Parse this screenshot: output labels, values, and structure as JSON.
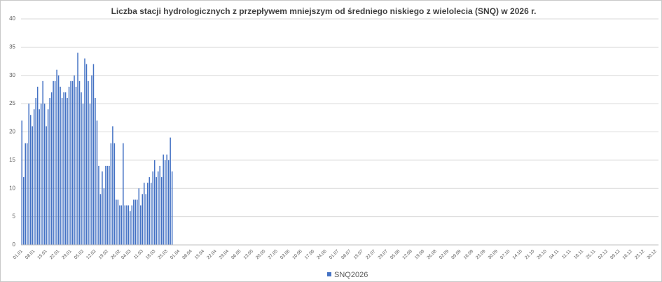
{
  "chart_data": {
    "type": "bar",
    "title": "Liczba stacji hydrologicznych z przepływem mniejszym od średniego niskiego z wielolecia (SNQ) w 2026 r.",
    "categories": [
      "01.01",
      null,
      null,
      null,
      null,
      null,
      null,
      "08.01",
      null,
      null,
      null,
      null,
      null,
      null,
      "15.01",
      null,
      null,
      null,
      null,
      null,
      null,
      "22.01",
      null,
      null,
      null,
      null,
      null,
      null,
      "29.01",
      null,
      null,
      null,
      null,
      null,
      null,
      "05.02",
      null,
      null,
      null,
      null,
      null,
      null,
      "12.02",
      null,
      null,
      null,
      null,
      null,
      null,
      "19.02",
      null,
      null,
      null,
      null,
      null,
      null,
      "26.02",
      null,
      null,
      null,
      null,
      null,
      "04.03",
      null,
      null,
      null,
      null,
      null,
      null,
      "11.03",
      null,
      null,
      null,
      null,
      null,
      null,
      "18.03",
      null,
      null,
      null,
      null,
      null,
      null,
      "25.03",
      null,
      null,
      null,
      null,
      null,
      null,
      "01.04",
      null,
      null,
      null,
      null,
      null,
      null,
      "08.04",
      null,
      null,
      null,
      null,
      null,
      null,
      "15.04",
      null,
      null,
      null,
      null,
      null,
      null,
      "22.04",
      null,
      null,
      null,
      null,
      null,
      null,
      "29.04",
      null,
      null,
      null,
      null,
      null,
      null,
      "06.05",
      null,
      null,
      null,
      null,
      null,
      null,
      "13.05",
      null,
      null,
      null,
      null,
      null,
      null,
      "20.05",
      null,
      null,
      null,
      null,
      null,
      null,
      "27.05",
      null,
      null,
      null,
      null,
      null,
      null,
      "03.06",
      null,
      null,
      null,
      null,
      null,
      null,
      "10.06",
      null,
      null,
      null,
      null,
      null,
      null,
      "17.06",
      null,
      null,
      null,
      null,
      null,
      null,
      "24.06",
      null,
      null,
      null,
      null,
      null,
      null,
      "01.07",
      null,
      null,
      null,
      null,
      null,
      null,
      "08.07",
      null,
      null,
      null,
      null,
      null,
      null,
      "15.07",
      null,
      null,
      null,
      null,
      null,
      null,
      "22.07",
      null,
      null,
      null,
      null,
      null,
      null,
      "29.07",
      null,
      null,
      null,
      null,
      null,
      null,
      "05.08",
      null,
      null,
      null,
      null,
      null,
      null,
      "12.08",
      null,
      null,
      null,
      null,
      null,
      null,
      "19.08",
      null,
      null,
      null,
      null,
      null,
      null,
      "26.08",
      null,
      null,
      null,
      null,
      null,
      null,
      "02.09",
      null,
      null,
      null,
      null,
      null,
      null,
      "09.09",
      null,
      null,
      null,
      null,
      null,
      null,
      "16.09",
      null,
      null,
      null,
      null,
      null,
      null,
      "23.09",
      null,
      null,
      null,
      null,
      null,
      null,
      "30.09",
      null,
      null,
      null,
      null,
      null,
      null,
      "07.10",
      null,
      null,
      null,
      null,
      null,
      null,
      "14.10",
      null,
      null,
      null,
      null,
      null,
      null,
      "21.10",
      null,
      null,
      null,
      null,
      null,
      null,
      "28.10",
      null,
      null,
      null,
      null,
      null,
      null,
      "04.11",
      null,
      null,
      null,
      null,
      null,
      null,
      "11.11",
      null,
      null,
      null,
      null,
      null,
      null,
      "18.11",
      null,
      null,
      null,
      null,
      null,
      null,
      "25.11",
      null,
      null,
      null,
      null,
      null,
      null,
      "02.12",
      null,
      null,
      null,
      null,
      null,
      null,
      "09.12",
      null,
      null,
      null,
      null,
      null,
      null,
      "16.12",
      null,
      null,
      null,
      null,
      null,
      null,
      "23.12",
      null,
      null,
      null,
      null,
      null,
      null,
      "30.12",
      null
    ],
    "series": [
      {
        "name": "SNQ2026",
        "color": "#4472c4",
        "values": [
          22,
          12,
          18,
          18,
          25,
          23,
          21,
          24,
          26,
          28,
          24,
          25,
          29,
          25,
          21,
          24,
          26,
          27,
          29,
          29,
          31,
          30,
          28,
          26,
          27,
          27,
          26,
          28,
          29,
          29,
          30,
          28,
          34,
          29,
          27,
          25,
          33,
          32,
          29,
          25,
          30,
          32,
          26,
          22,
          14,
          9,
          13,
          10,
          14,
          14,
          14,
          18,
          21,
          18,
          8,
          8,
          7,
          7,
          18,
          7,
          7,
          7,
          6,
          7,
          8,
          8,
          8,
          10,
          7,
          9,
          11,
          9,
          11,
          12,
          11,
          13,
          15,
          12,
          13,
          14,
          12,
          16,
          15,
          16,
          15,
          19,
          13,
          null,
          null,
          null,
          null,
          null,
          null,
          null,
          null,
          null,
          null,
          null,
          null,
          null,
          null,
          null,
          null,
          null,
          null,
          null,
          null,
          null,
          null,
          null,
          null,
          null,
          null,
          null,
          null,
          null,
          null,
          null,
          null,
          null,
          null,
          null,
          null,
          null,
          null,
          null,
          null,
          null,
          null,
          null,
          null,
          null,
          null,
          null,
          null,
          null,
          null,
          null,
          null,
          null,
          null,
          null,
          null,
          null,
          null,
          null,
          null,
          null,
          null,
          null,
          null,
          null,
          null,
          null,
          null,
          null,
          null,
          null,
          null,
          null,
          null,
          null,
          null,
          null,
          null,
          null,
          null,
          null,
          null,
          null,
          null,
          null,
          null,
          null,
          null,
          null,
          null,
          null,
          null,
          null,
          null,
          null,
          null,
          null,
          null,
          null,
          null,
          null,
          null,
          null,
          null,
          null,
          null,
          null,
          null,
          null,
          null,
          null,
          null,
          null,
          null,
          null,
          null,
          null,
          null,
          null,
          null,
          null,
          null,
          null,
          null,
          null,
          null,
          null,
          null,
          null,
          null,
          null,
          null,
          null,
          null,
          null,
          null,
          null,
          null,
          null,
          null,
          null,
          null,
          null,
          null,
          null,
          null,
          null,
          null,
          null,
          null,
          null,
          null,
          null,
          null,
          null,
          null,
          null,
          null,
          null,
          null,
          null,
          null,
          null,
          null,
          null,
          null,
          null,
          null,
          null,
          null,
          null,
          null,
          null,
          null,
          null,
          null,
          null,
          null,
          null,
          null,
          null,
          null,
          null,
          null,
          null,
          null,
          null,
          null,
          null,
          null,
          null,
          null,
          null,
          null,
          null,
          null,
          null,
          null,
          null,
          null,
          null,
          null,
          null,
          null,
          null,
          null,
          null,
          null,
          null,
          null,
          null,
          null,
          null,
          null,
          null,
          null,
          null,
          null,
          null,
          null,
          null,
          null,
          null,
          null,
          null,
          null,
          null,
          null,
          null,
          null,
          null,
          null,
          null,
          null,
          null,
          null,
          null,
          null,
          null,
          null,
          null,
          null,
          null,
          null,
          null,
          null,
          null,
          null,
          null,
          null,
          null,
          null,
          null,
          null,
          null,
          null,
          null,
          null,
          null,
          null,
          null,
          null,
          null,
          null,
          null,
          null,
          null,
          null,
          null,
          null,
          null,
          null,
          null,
          null,
          null,
          null,
          null,
          null
        ]
      }
    ],
    "ylim": [
      0,
      40
    ],
    "yticks": [
      0,
      5,
      10,
      15,
      20,
      25,
      30,
      35,
      40
    ],
    "grid": true,
    "legend": "bottom"
  }
}
